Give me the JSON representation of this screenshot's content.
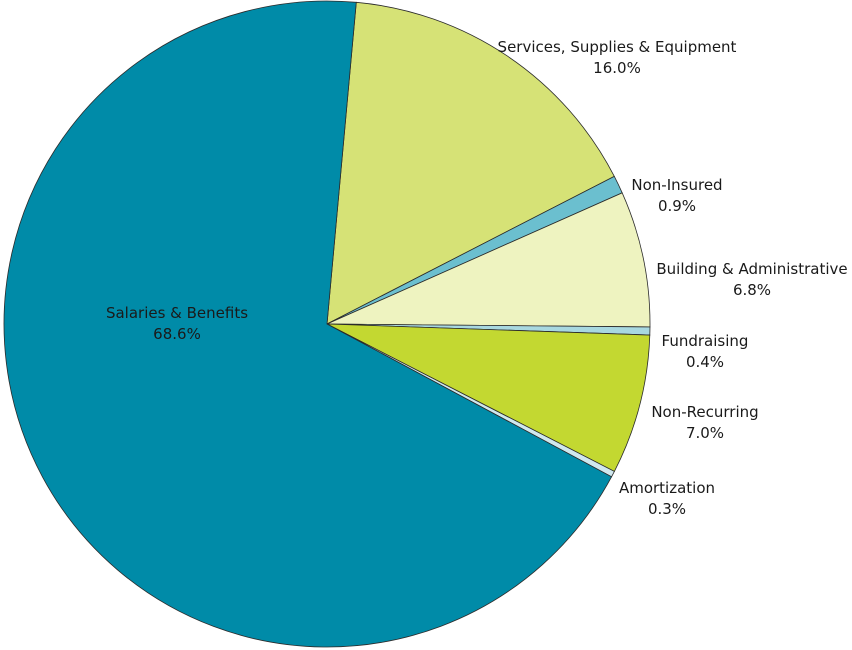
{
  "chart_data": {
    "type": "pie",
    "title": "",
    "start_angle_deg": 5.2,
    "direction": "clockwise",
    "slices": [
      {
        "label": "Services, Supplies & Equipment",
        "value": 16.0,
        "value_label": "16.0%",
        "color": "#d6e276",
        "label_color": "#1a1a1a"
      },
      {
        "label": "Non-Insured",
        "value": 0.9,
        "value_label": "0.9%",
        "color": "#6bbfcf",
        "label_color": "#1a1a1a"
      },
      {
        "label": "Building & Administrative",
        "value": 6.8,
        "value_label": "6.8%",
        "color": "#eef3c0",
        "label_color": "#1a1a1a"
      },
      {
        "label": "Fundraising",
        "value": 0.4,
        "value_label": "0.4%",
        "color": "#a8d8e0",
        "label_color": "#1a1a1a"
      },
      {
        "label": "Non-Recurring",
        "value": 7.0,
        "value_label": "7.0%",
        "color": "#c3d831",
        "label_color": "#1a1a1a"
      },
      {
        "label": "Amortization",
        "value": 0.3,
        "value_label": "0.3%",
        "color": "#cfe8ee",
        "label_color": "#1a1a1a"
      },
      {
        "label": "Salaries & Benefits",
        "value": 68.6,
        "value_label": "68.6%",
        "color": "#008ba8",
        "label_color": "#1a1a1a"
      }
    ]
  }
}
